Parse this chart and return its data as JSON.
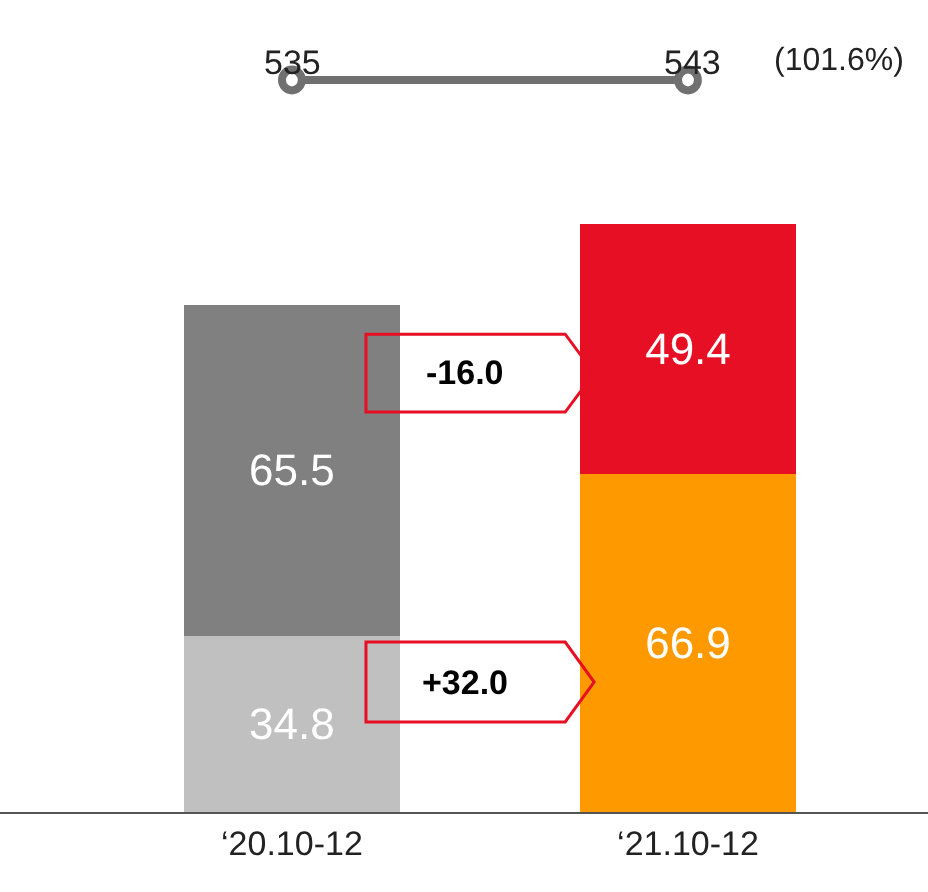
{
  "chart_data": {
    "type": "bar",
    "stacked": true,
    "data_labels": true,
    "categories": [
      "‘20.10-12",
      "‘21.10-12"
    ],
    "series": [
      {
        "colors": [
          "#c0c0c0",
          "#ff9900"
        ],
        "values": [
          34.8,
          66.9
        ]
      },
      {
        "colors": [
          "#808080",
          "#e60f23"
        ],
        "values": [
          65.5,
          49.4
        ]
      }
    ],
    "annotations": [
      "535",
      "543",
      "(101.6%)",
      "-16.0",
      "+32.0"
    ]
  }
}
